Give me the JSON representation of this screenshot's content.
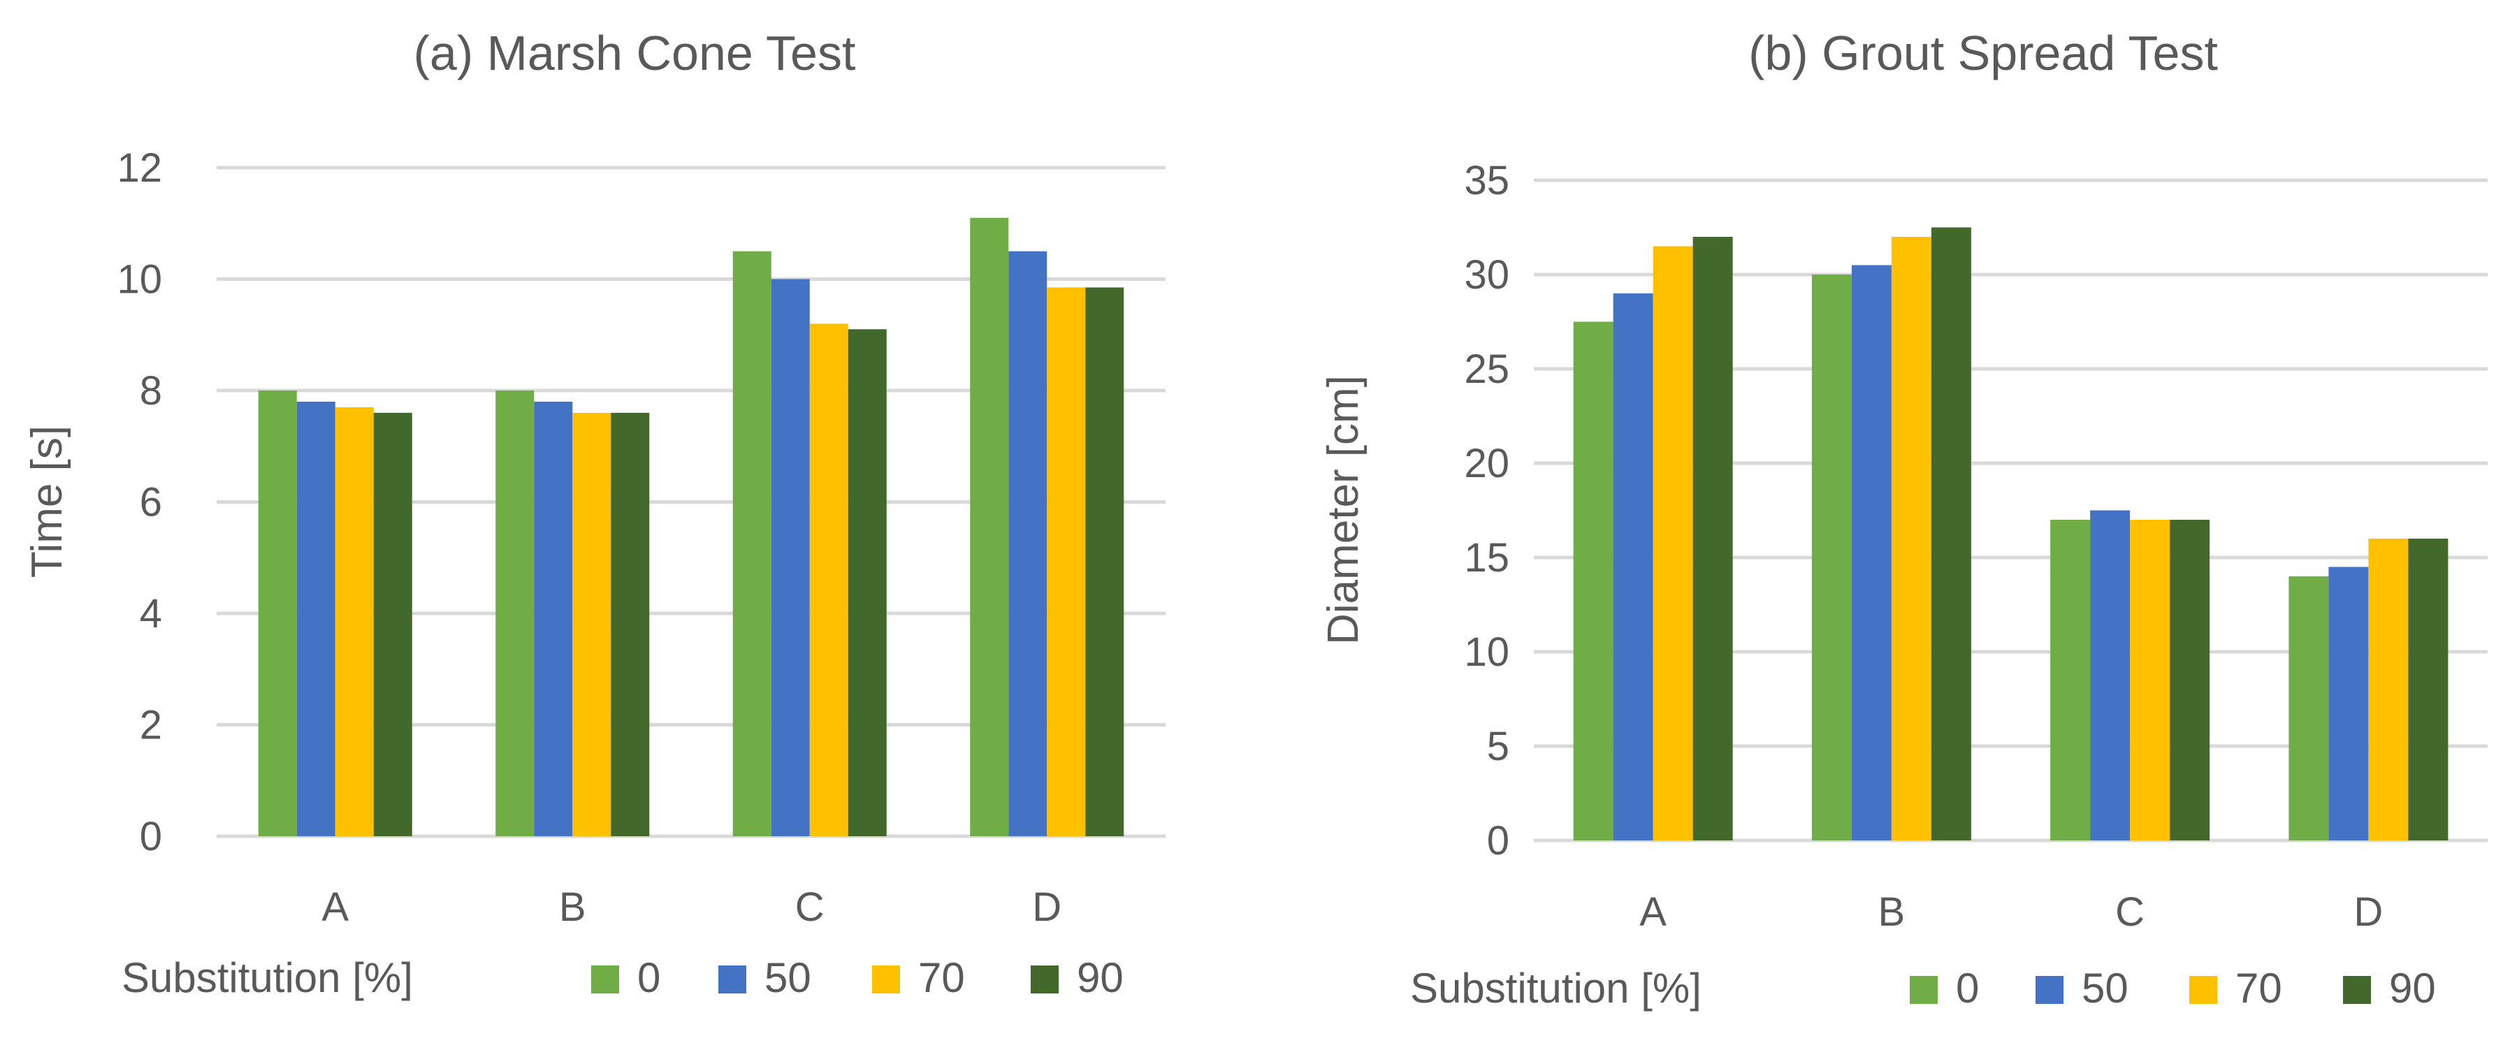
{
  "chart_data": [
    {
      "type": "bar",
      "title": "(a) Marsh Cone Test",
      "xlabel": "",
      "ylabel": "Time [s]",
      "ylim": [
        0,
        12
      ],
      "yticks": [
        0,
        2,
        4,
        6,
        8,
        10,
        12
      ],
      "categories": [
        "A",
        "B",
        "C",
        "D"
      ],
      "legend_title": "Substitution [%]",
      "legend_position": "bottom",
      "grid": true,
      "series": [
        {
          "name": "0",
          "color": "#70ad47",
          "values": [
            8.0,
            8.0,
            10.5,
            11.1
          ]
        },
        {
          "name": "50",
          "color": "#4472c4",
          "values": [
            7.8,
            7.8,
            10.0,
            10.5
          ]
        },
        {
          "name": "70",
          "color": "#ffc000",
          "values": [
            7.7,
            7.6,
            9.2,
            9.85
          ]
        },
        {
          "name": "90",
          "color": "#43682b",
          "values": [
            7.6,
            7.6,
            9.1,
            9.85
          ]
        }
      ]
    },
    {
      "type": "bar",
      "title": "(b) Grout Spread Test",
      "xlabel": "",
      "ylabel": "Diameter [cm]",
      "ylim": [
        0,
        35
      ],
      "yticks": [
        0,
        5,
        10,
        15,
        20,
        25,
        30,
        35
      ],
      "categories": [
        "A",
        "B",
        "C",
        "D"
      ],
      "legend_title": "Substitution [%]",
      "legend_position": "bottom",
      "grid": true,
      "series": [
        {
          "name": "0",
          "color": "#70ad47",
          "values": [
            27.5,
            30.0,
            17.0,
            14.0
          ]
        },
        {
          "name": "50",
          "color": "#4472c4",
          "values": [
            29.0,
            30.5,
            17.5,
            14.5
          ]
        },
        {
          "name": "70",
          "color": "#ffc000",
          "values": [
            31.5,
            32.0,
            17.0,
            16.0
          ]
        },
        {
          "name": "90",
          "color": "#43682b",
          "values": [
            32.0,
            32.5,
            17.0,
            16.0
          ]
        }
      ]
    }
  ]
}
